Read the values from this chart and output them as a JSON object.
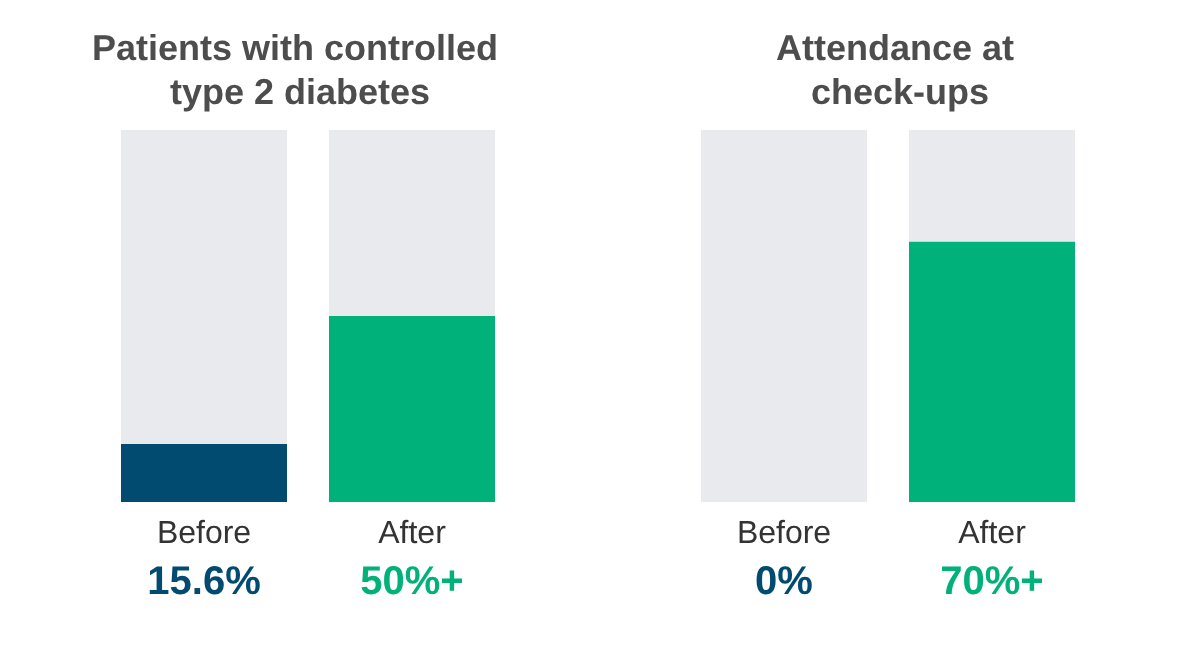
{
  "chart_data": [
    {
      "type": "bar",
      "title": "Patients with controlled type 2 diabetes",
      "categories": [
        "Before",
        "After"
      ],
      "stacked": true,
      "series": [
        {
          "colors": [
            "#004b6f",
            "#00b27a"
          ],
          "values": [
            15.6,
            50
          ],
          "value_labels": [
            "15.6%",
            "50%+"
          ]
        },
        {
          "color": "#e8eaed",
          "values": [
            84.4,
            50
          ]
        }
      ],
      "ylim": [
        0,
        100
      ],
      "tick_labels": "x"
    },
    {
      "type": "bar",
      "title": "Attendance at check-ups",
      "categories": [
        "Before",
        "After"
      ],
      "stacked": true,
      "series": [
        {
          "colors": [
            "#004b6f",
            "#00b27a"
          ],
          "values": [
            0,
            70
          ],
          "value_labels": [
            "0%",
            "70%+"
          ]
        },
        {
          "color": "#e8eaed",
          "values": [
            100,
            30
          ]
        }
      ],
      "ylim": [
        0,
        100
      ],
      "tick_labels": "x"
    }
  ]
}
